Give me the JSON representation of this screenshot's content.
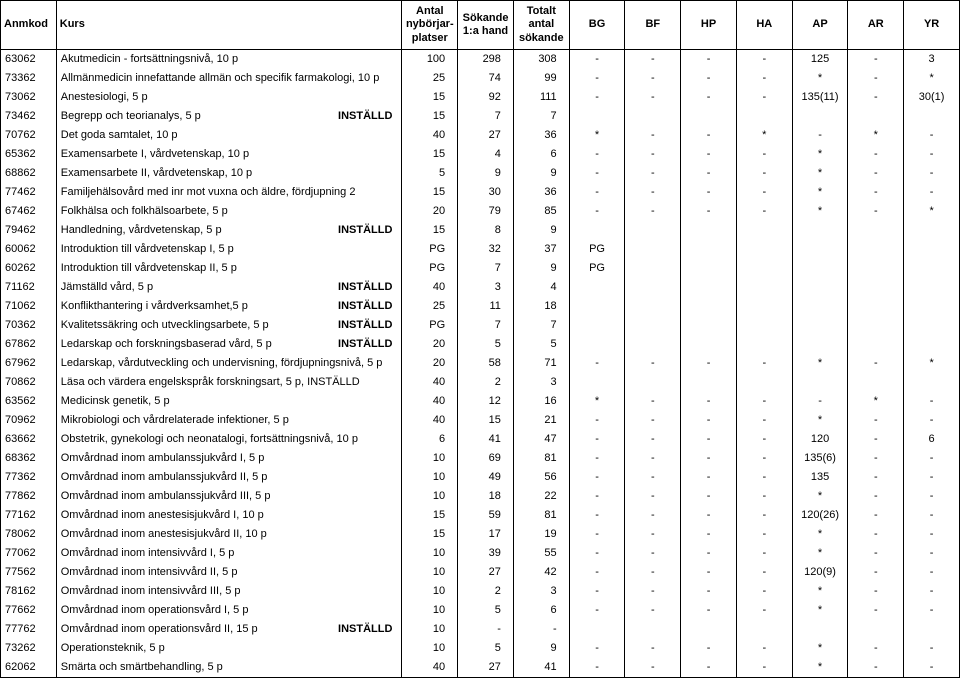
{
  "style": {
    "font_family": "Arial",
    "font_size_header": 11,
    "font_size_body": 11,
    "border_color": "#000000",
    "background_color": "#ffffff",
    "text_color": "#000000"
  },
  "columns": [
    {
      "key": "code",
      "label": "Anmkod",
      "class": "c-code"
    },
    {
      "key": "name",
      "label": "Kurs",
      "class": "c-name"
    },
    {
      "key": "antal",
      "label": "Antal\nnybörjar-\nplatser",
      "class": "c-antal"
    },
    {
      "key": "sok",
      "label": "Sökande\n1:a hand",
      "class": "c-sok"
    },
    {
      "key": "tot",
      "label": "Totalt\nantal\nsökande",
      "class": "c-tot"
    },
    {
      "key": "bg",
      "label": "BG",
      "class": "c-bg"
    },
    {
      "key": "bf",
      "label": "BF",
      "class": "c-bf"
    },
    {
      "key": "hp",
      "label": "HP",
      "class": "c-hp"
    },
    {
      "key": "ha",
      "label": "HA",
      "class": "c-ha"
    },
    {
      "key": "ap",
      "label": "AP",
      "class": "c-ap"
    },
    {
      "key": "ar",
      "label": "AR",
      "class": "c-ar"
    },
    {
      "key": "yr",
      "label": "YR",
      "class": "c-yr"
    }
  ],
  "rows": [
    {
      "code": "63062",
      "name": "Akutmedicin - fortsättningsnivå, 10 p",
      "status": "",
      "antal": "100",
      "sok": "298",
      "tot": "308",
      "bg": "-",
      "bf": "-",
      "hp": "-",
      "ha": "-",
      "ap": "125",
      "ar": "-",
      "yr": "3"
    },
    {
      "code": "73362",
      "name": "Allmänmedicin innefattande allmän och specifik farmakologi, 10 p",
      "status": "",
      "antal": "25",
      "sok": "74",
      "tot": "99",
      "bg": "-",
      "bf": "-",
      "hp": "-",
      "ha": "-",
      "ap": "*",
      "ar": "-",
      "yr": "*"
    },
    {
      "code": "73062",
      "name": "Anestesiologi, 5 p",
      "status": "",
      "antal": "15",
      "sok": "92",
      "tot": "111",
      "bg": "-",
      "bf": "-",
      "hp": "-",
      "ha": "-",
      "ap": "135(11)",
      "ar": "-",
      "yr": "30(1)"
    },
    {
      "code": "73462",
      "name": "Begrepp och teorianalys, 5 p",
      "status": "INSTÄLLD",
      "antal": "15",
      "sok": "7",
      "tot": "7",
      "bg": "",
      "bf": "",
      "hp": "",
      "ha": "",
      "ap": "",
      "ar": "",
      "yr": ""
    },
    {
      "code": "70762",
      "name": "Det goda samtalet, 10 p",
      "status": "",
      "antal": "40",
      "sok": "27",
      "tot": "36",
      "bg": "*",
      "bf": "-",
      "hp": "-",
      "ha": "*",
      "ap": "-",
      "ar": "*",
      "yr": "-"
    },
    {
      "code": "65362",
      "name": "Examensarbete I, vårdvetenskap, 10 p",
      "status": "",
      "antal": "15",
      "sok": "4",
      "tot": "6",
      "bg": "-",
      "bf": "-",
      "hp": "-",
      "ha": "-",
      "ap": "*",
      "ar": "-",
      "yr": "-"
    },
    {
      "code": "68862",
      "name": "Examensarbete II, vårdvetenskap, 10 p",
      "status": "",
      "antal": "5",
      "sok": "9",
      "tot": "9",
      "bg": "-",
      "bf": "-",
      "hp": "-",
      "ha": "-",
      "ap": "*",
      "ar": "-",
      "yr": "-"
    },
    {
      "code": "77462",
      "name": "Familjehälsovård med inr mot vuxna och äldre, fördjupning 2",
      "status": "",
      "antal": "15",
      "sok": "30",
      "tot": "36",
      "bg": "-",
      "bf": "-",
      "hp": "-",
      "ha": "-",
      "ap": "*",
      "ar": "-",
      "yr": "-"
    },
    {
      "code": "67462",
      "name": "Folkhälsa och folkhälsoarbete, 5 p",
      "status": "",
      "antal": "20",
      "sok": "79",
      "tot": "85",
      "bg": "-",
      "bf": "-",
      "hp": "-",
      "ha": "-",
      "ap": "*",
      "ar": "-",
      "yr": "*"
    },
    {
      "code": "79462",
      "name": "Handledning, vårdvetenskap, 5 p",
      "status": "INSTÄLLD",
      "antal": "15",
      "sok": "8",
      "tot": "9",
      "bg": "",
      "bf": "",
      "hp": "",
      "ha": "",
      "ap": "",
      "ar": "",
      "yr": ""
    },
    {
      "code": "60062",
      "name": "Introduktion till vårdvetenskap I, 5 p",
      "status": "",
      "antal": "PG",
      "sok": "32",
      "tot": "37",
      "bg": "PG",
      "bf": "",
      "hp": "",
      "ha": "",
      "ap": "",
      "ar": "",
      "yr": ""
    },
    {
      "code": "60262",
      "name": "Introduktion till vårdvetenskap II, 5 p",
      "status": "",
      "antal": "PG",
      "sok": "7",
      "tot": "9",
      "bg": "PG",
      "bf": "",
      "hp": "",
      "ha": "",
      "ap": "",
      "ar": "",
      "yr": ""
    },
    {
      "code": "71162",
      "name": "Jämställd vård, 5 p",
      "status": "INSTÄLLD",
      "antal": "40",
      "sok": "3",
      "tot": "4",
      "bg": "",
      "bf": "",
      "hp": "",
      "ha": "",
      "ap": "",
      "ar": "",
      "yr": ""
    },
    {
      "code": "71062",
      "name": "Konflikthantering i vårdverksamhet,5 p",
      "status": "INSTÄLLD",
      "antal": "25",
      "sok": "11",
      "tot": "18",
      "bg": "",
      "bf": "",
      "hp": "",
      "ha": "",
      "ap": "",
      "ar": "",
      "yr": ""
    },
    {
      "code": "70362",
      "name": "Kvalitetssäkring och utvecklingsarbete, 5 p",
      "status": "INSTÄLLD",
      "antal": "PG",
      "sok": "7",
      "tot": "7",
      "bg": "",
      "bf": "",
      "hp": "",
      "ha": "",
      "ap": "",
      "ar": "",
      "yr": ""
    },
    {
      "code": "67862",
      "name": "Ledarskap och forskningsbaserad vård, 5 p",
      "status": "INSTÄLLD",
      "antal": "20",
      "sok": "5",
      "tot": "5",
      "bg": "",
      "bf": "",
      "hp": "",
      "ha": "",
      "ap": "",
      "ar": "",
      "yr": ""
    },
    {
      "code": "67962",
      "name": "Ledarskap, vårdutveckling och undervisning, fördjupningsnivå, 5 p",
      "status": "",
      "antal": "20",
      "sok": "58",
      "tot": "71",
      "bg": "-",
      "bf": "-",
      "hp": "-",
      "ha": "-",
      "ap": "*",
      "ar": "-",
      "yr": "*"
    },
    {
      "code": "70862",
      "name": "Läsa och värdera engelskspråk forskningsart, 5 p, INSTÄLLD",
      "status": "",
      "antal": "40",
      "sok": "2",
      "tot": "3",
      "bg": "",
      "bf": "",
      "hp": "",
      "ha": "",
      "ap": "",
      "ar": "",
      "yr": ""
    },
    {
      "code": "63562",
      "name": "Medicinsk genetik, 5 p",
      "status": "",
      "antal": "40",
      "sok": "12",
      "tot": "16",
      "bg": "*",
      "bf": "-",
      "hp": "-",
      "ha": "-",
      "ap": "-",
      "ar": "*",
      "yr": "-"
    },
    {
      "code": "70962",
      "name": "Mikrobiologi och vårdrelaterade infektioner, 5 p",
      "status": "",
      "antal": "40",
      "sok": "15",
      "tot": "21",
      "bg": "-",
      "bf": "-",
      "hp": "-",
      "ha": "-",
      "ap": "*",
      "ar": "-",
      "yr": "-"
    },
    {
      "code": "63662",
      "name": "Obstetrik, gynekologi och neonatalogi, fortsättningsnivå, 10 p",
      "status": "",
      "antal": "6",
      "sok": "41",
      "tot": "47",
      "bg": "-",
      "bf": "-",
      "hp": "-",
      "ha": "-",
      "ap": "120",
      "ar": "-",
      "yr": "6"
    },
    {
      "code": "68362",
      "name": "Omvårdnad inom ambulanssjukvård I, 5 p",
      "status": "",
      "antal": "10",
      "sok": "69",
      "tot": "81",
      "bg": "-",
      "bf": "-",
      "hp": "-",
      "ha": "-",
      "ap": "135(6)",
      "ar": "-",
      "yr": "-"
    },
    {
      "code": "77362",
      "name": "Omvårdnad inom ambulanssjukvård II, 5 p",
      "status": "",
      "antal": "10",
      "sok": "49",
      "tot": "56",
      "bg": "-",
      "bf": "-",
      "hp": "-",
      "ha": "-",
      "ap": "135",
      "ar": "-",
      "yr": "-"
    },
    {
      "code": "77862",
      "name": "Omvårdnad inom ambulanssjukvård III, 5 p",
      "status": "",
      "antal": "10",
      "sok": "18",
      "tot": "22",
      "bg": "-",
      "bf": "-",
      "hp": "-",
      "ha": "-",
      "ap": "*",
      "ar": "-",
      "yr": "-"
    },
    {
      "code": "77162",
      "name": "Omvårdnad inom anestesisjukvård I, 10 p",
      "status": "",
      "antal": "15",
      "sok": "59",
      "tot": "81",
      "bg": "-",
      "bf": "-",
      "hp": "-",
      "ha": "-",
      "ap": "120(26)",
      "ar": "-",
      "yr": "-"
    },
    {
      "code": "78062",
      "name": "Omvårdnad inom anestesisjukvård II, 10 p",
      "status": "",
      "antal": "15",
      "sok": "17",
      "tot": "19",
      "bg": "-",
      "bf": "-",
      "hp": "-",
      "ha": "-",
      "ap": "*",
      "ar": "-",
      "yr": "-"
    },
    {
      "code": "77062",
      "name": "Omvårdnad inom intensivvård I, 5 p",
      "status": "",
      "antal": "10",
      "sok": "39",
      "tot": "55",
      "bg": "-",
      "bf": "-",
      "hp": "-",
      "ha": "-",
      "ap": "*",
      "ar": "-",
      "yr": "-"
    },
    {
      "code": "77562",
      "name": "Omvårdnad inom intensivvård II, 5 p",
      "status": "",
      "antal": "10",
      "sok": "27",
      "tot": "42",
      "bg": "-",
      "bf": "-",
      "hp": "-",
      "ha": "-",
      "ap": "120(9)",
      "ar": "-",
      "yr": "-"
    },
    {
      "code": "78162",
      "name": "Omvårdnad inom intensivvård III, 5 p",
      "status": "",
      "antal": "10",
      "sok": "2",
      "tot": "3",
      "bg": "-",
      "bf": "-",
      "hp": "-",
      "ha": "-",
      "ap": "*",
      "ar": "-",
      "yr": "-"
    },
    {
      "code": "77662",
      "name": "Omvårdnad inom operationsvård I, 5 p",
      "status": "",
      "antal": "10",
      "sok": "5",
      "tot": "6",
      "bg": "-",
      "bf": "-",
      "hp": "-",
      "ha": "-",
      "ap": "*",
      "ar": "-",
      "yr": "-"
    },
    {
      "code": "77762",
      "name": "Omvårdnad inom operationsvård II, 15 p",
      "status": "INSTÄLLD",
      "antal": "10",
      "sok": "-",
      "tot": "-",
      "bg": "",
      "bf": "",
      "hp": "",
      "ha": "",
      "ap": "",
      "ar": "",
      "yr": ""
    },
    {
      "code": "73262",
      "name": "Operationsteknik, 5 p",
      "status": "",
      "antal": "10",
      "sok": "5",
      "tot": "9",
      "bg": "-",
      "bf": "-",
      "hp": "-",
      "ha": "-",
      "ap": "*",
      "ar": "-",
      "yr": "-"
    },
    {
      "code": "62062",
      "name": "Smärta och smärtbehandling, 5 p",
      "status": "",
      "antal": "40",
      "sok": "27",
      "tot": "41",
      "bg": "-",
      "bf": "-",
      "hp": "-",
      "ha": "-",
      "ap": "*",
      "ar": "-",
      "yr": "-"
    }
  ]
}
